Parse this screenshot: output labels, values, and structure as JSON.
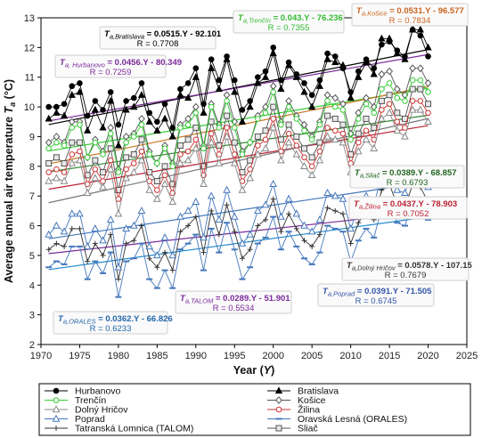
{
  "chart_data": {
    "type": "line",
    "xlabel": "Year (Y)",
    "ylabel": "Average annual air temperature Ta (°C)",
    "xlim": [
      1970,
      2025
    ],
    "ylim": [
      2,
      13
    ],
    "xticks": [
      1970,
      1975,
      1980,
      1985,
      1990,
      1995,
      2000,
      2005,
      2010,
      2015,
      2020,
      2025
    ],
    "yticks": [
      2,
      3,
      4,
      5,
      6,
      7,
      8,
      9,
      10,
      11,
      12,
      13
    ],
    "grid": false,
    "legend_position": "bottom",
    "years": [
      1971,
      1972,
      1973,
      1974,
      1975,
      1976,
      1977,
      1978,
      1979,
      1980,
      1981,
      1982,
      1983,
      1984,
      1985,
      1986,
      1987,
      1988,
      1989,
      1990,
      1991,
      1992,
      1993,
      1994,
      1995,
      1996,
      1997,
      1998,
      1999,
      2000,
      2001,
      2002,
      2003,
      2004,
      2005,
      2006,
      2007,
      2008,
      2009,
      2010,
      2011,
      2012,
      2013,
      2014,
      2015,
      2016,
      2017,
      2018,
      2019,
      2020
    ],
    "series": [
      {
        "name": "Hurbanovo",
        "color": "#000000",
        "marker": "circle-filled",
        "values": [
          10.0,
          10.0,
          10.1,
          10.7,
          10.8,
          9.7,
          10.2,
          9.9,
          10.5,
          9.4,
          10.2,
          10.3,
          10.8,
          9.8,
          9.5,
          10.1,
          9.3,
          10.6,
          10.8,
          11.3,
          10.1,
          11.6,
          10.9,
          11.7,
          10.9,
          9.9,
          10.2,
          11.0,
          11.2,
          12.0,
          10.9,
          11.5,
          11.1,
          10.8,
          10.4,
          10.9,
          11.8,
          11.7,
          11.3,
          10.5,
          11.2,
          11.6,
          11.3,
          12.1,
          12.2,
          11.9,
          11.7,
          12.6,
          12.4,
          11.7
        ]
      },
      {
        "name": "Bratislava",
        "color": "#000000",
        "marker": "triangle-filled",
        "values": [
          9.6,
          9.8,
          9.7,
          10.4,
          10.5,
          9.2,
          9.9,
          9.3,
          10.2,
          8.7,
          9.9,
          10.0,
          10.4,
          9.5,
          9.2,
          9.6,
          9.0,
          10.4,
          10.3,
          11.0,
          9.8,
          11.3,
          10.6,
          11.6,
          10.5,
          9.5,
          10.0,
          10.8,
          11.0,
          11.8,
          10.6,
          11.4,
          11.0,
          10.5,
          10.0,
          10.7,
          11.6,
          11.5,
          11.4,
          10.3,
          11.0,
          11.5,
          11.1,
          12.3,
          12.3,
          11.8,
          11.6,
          12.6,
          12.6,
          12.0
        ]
      },
      {
        "name": "Trenčín",
        "color": "#33cc33",
        "marker": "circle-open",
        "values": [
          8.6,
          8.8,
          8.7,
          9.3,
          9.4,
          8.3,
          8.8,
          8.4,
          9.1,
          7.8,
          8.8,
          9.0,
          9.4,
          8.4,
          8.1,
          8.6,
          8.0,
          9.3,
          9.4,
          9.8,
          8.6,
          10.0,
          9.3,
          10.2,
          9.3,
          8.4,
          8.8,
          9.6,
          9.8,
          10.5,
          9.4,
          10.0,
          9.6,
          9.2,
          8.9,
          9.4,
          10.2,
          10.0,
          9.9,
          8.9,
          9.6,
          10.1,
          9.8,
          10.6,
          10.8,
          10.3,
          10.2,
          10.9,
          10.9,
          10.5
        ]
      },
      {
        "name": "Košice",
        "color": "#555555",
        "marker": "diamond-open",
        "values": [
          8.8,
          9.0,
          8.8,
          9.5,
          9.5,
          8.3,
          8.9,
          8.5,
          9.3,
          7.9,
          9.0,
          9.1,
          9.6,
          8.5,
          8.1,
          8.7,
          8.1,
          9.4,
          9.6,
          10.0,
          8.7,
          10.1,
          9.4,
          10.4,
          9.5,
          8.5,
          8.8,
          9.7,
          10.0,
          10.7,
          9.5,
          10.2,
          9.7,
          9.4,
          9.0,
          9.5,
          10.4,
          10.3,
          10.1,
          9.1,
          9.8,
          10.3,
          10.0,
          11.1,
          11.2,
          10.6,
          10.4,
          11.3,
          11.3,
          10.8
        ]
      },
      {
        "name": "Dolný Hričov",
        "color": "#888888",
        "marker": "triangle-open",
        "values": [
          7.5,
          7.6,
          7.5,
          8.1,
          8.2,
          7.1,
          7.6,
          7.3,
          7.9,
          6.4,
          7.6,
          7.8,
          8.2,
          7.2,
          6.9,
          7.4,
          6.8,
          8.1,
          8.2,
          8.6,
          7.4,
          8.8,
          8.1,
          9.0,
          8.1,
          7.2,
          7.6,
          8.4,
          8.6,
          9.3,
          8.2,
          8.8,
          8.4,
          8.0,
          7.7,
          8.2,
          9.0,
          8.9,
          8.8,
          7.8,
          8.5,
          8.9,
          8.6,
          9.6,
          9.8,
          9.2,
          9.0,
          9.9,
          9.9,
          9.5
        ]
      },
      {
        "name": "Žilina",
        "color": "#cc3333",
        "marker": "circle-open",
        "values": [
          7.8,
          7.9,
          7.8,
          8.4,
          8.5,
          7.4,
          7.9,
          7.5,
          8.2,
          6.9,
          7.9,
          8.1,
          8.5,
          7.5,
          7.2,
          7.7,
          7.1,
          8.4,
          8.5,
          8.9,
          7.7,
          9.1,
          8.4,
          9.3,
          8.4,
          7.5,
          7.9,
          8.7,
          8.9,
          9.6,
          8.5,
          9.1,
          8.7,
          8.3,
          8.0,
          8.5,
          9.3,
          9.2,
          9.1,
          8.1,
          8.8,
          9.2,
          8.9,
          9.9,
          10.1,
          9.5,
          9.3,
          10.2,
          10.2,
          9.8
        ]
      },
      {
        "name": "Poprad",
        "color": "#4477bb",
        "marker": "triangle-open",
        "values": [
          5.7,
          6.0,
          5.8,
          6.4,
          6.4,
          5.3,
          5.9,
          5.5,
          6.2,
          4.6,
          5.9,
          6.0,
          6.5,
          5.3,
          5.0,
          5.6,
          5.0,
          6.3,
          6.5,
          6.8,
          5.6,
          7.0,
          6.2,
          7.2,
          6.3,
          5.4,
          5.7,
          6.5,
          6.7,
          7.4,
          6.3,
          6.9,
          6.4,
          6.0,
          5.8,
          6.2,
          7.1,
          7.0,
          6.9,
          5.9,
          6.6,
          7.0,
          6.7,
          7.7,
          7.9,
          7.2,
          7.1,
          7.9,
          7.8,
          7.3
        ]
      },
      {
        "name": "Oravská Lesná (ORALES)",
        "color": "#4477bb",
        "marker": "dash",
        "values": [
          4.6,
          4.8,
          4.7,
          5.3,
          5.3,
          4.2,
          4.8,
          4.4,
          5.1,
          3.6,
          4.8,
          4.9,
          5.4,
          4.2,
          3.9,
          4.5,
          3.9,
          5.2,
          5.4,
          5.7,
          4.5,
          5.9,
          5.1,
          6.1,
          5.2,
          4.2,
          4.6,
          5.4,
          5.6,
          6.3,
          5.2,
          5.8,
          5.3,
          4.9,
          4.7,
          5.1,
          6.0,
          5.9,
          5.8,
          4.8,
          5.5,
          5.9,
          5.6,
          6.6,
          6.8,
          6.1,
          6.0,
          6.8,
          6.7,
          6.2
        ]
      },
      {
        "name": "Tatranská Lomnica (TALOM)",
        "color": "#333333",
        "marker": "plus",
        "values": [
          5.2,
          5.4,
          5.3,
          5.9,
          5.9,
          4.8,
          5.4,
          5.0,
          5.7,
          4.2,
          5.4,
          5.5,
          6.0,
          4.9,
          4.6,
          5.1,
          4.5,
          5.8,
          6.0,
          6.3,
          5.1,
          6.5,
          5.7,
          6.7,
          5.8,
          4.9,
          5.2,
          6.0,
          6.2,
          6.9,
          5.8,
          6.4,
          5.9,
          5.5,
          5.3,
          5.7,
          6.6,
          6.5,
          6.4,
          5.4,
          6.1,
          6.5,
          6.2,
          7.2,
          7.4,
          6.7,
          6.6,
          7.4,
          7.3,
          6.8
        ]
      },
      {
        "name": "Sliač",
        "color": "#555555",
        "marker": "square-open",
        "values": [
          8.1,
          8.3,
          8.1,
          8.8,
          8.8,
          7.7,
          8.2,
          7.8,
          8.6,
          7.2,
          8.3,
          8.4,
          8.9,
          7.8,
          7.5,
          8.0,
          7.4,
          8.7,
          8.9,
          9.3,
          8.0,
          9.5,
          8.7,
          9.7,
          8.8,
          7.8,
          8.2,
          9.0,
          9.2,
          10.0,
          8.9,
          9.4,
          9.0,
          8.6,
          8.3,
          8.8,
          9.7,
          9.6,
          9.4,
          8.4,
          9.1,
          9.6,
          9.3,
          10.2,
          10.4,
          9.8,
          9.6,
          10.6,
          10.6,
          10.1
        ]
      }
    ],
    "trendlines": [
      {
        "station": "Bratislava",
        "label": "Ta,Bratislava",
        "slope": 0.0515,
        "intercept": -92.101,
        "r": 0.7708,
        "color": "#000000",
        "equation": "= 0.0515.Y - 92.101",
        "r_text": "R = 0.7708",
        "text_color": "#000000"
      },
      {
        "station": "Hurbanovo",
        "label": "Ta, Hurbanovo",
        "slope": 0.0456,
        "intercept": -80.349,
        "r": 0.7259,
        "color": "#7a2a9a",
        "equation": "= 0.0456.Y - 80.349",
        "r_text": "R = 0.7259",
        "text_color": "#7a2a9a"
      },
      {
        "station": "Trenčín",
        "label": "Ta,Trenčín",
        "slope": 0.043,
        "intercept": -76.236,
        "r": 0.7355,
        "color": "#33cc33",
        "equation": "= 0.043.Y - 76.236",
        "r_text": "R = 0.7355",
        "text_color": "#33bb33"
      },
      {
        "station": "Košice",
        "label": "Ta,Košice",
        "slope": 0.0531,
        "intercept": -96.577,
        "r": 0.7834,
        "color": "#cc7722",
        "equation": "= 0.0531.Y - 96.577",
        "r_text": "R = 0.7834",
        "text_color": "#cc6622"
      },
      {
        "station": "Sliač",
        "label": "Ta,Sliač",
        "slope": 0.0389,
        "intercept": -68.857,
        "r": 0.6793,
        "color": "#338833",
        "equation": "= 0.0389.Y - 68.857",
        "r_text": "R = 0.6793",
        "text_color": "#226622"
      },
      {
        "station": "Žilina",
        "label": "Ta,Žilina",
        "slope": 0.0437,
        "intercept": -78.903,
        "r": 0.7052,
        "color": "#bb2233",
        "equation": "= 0.0437.Y - 78.903",
        "r_text": "R = 0.7052",
        "text_color": "#bb2233"
      },
      {
        "station": "Dolný Hričov",
        "label": "Ta,Dolný Hričov",
        "slope": 0.0578,
        "intercept": -107.15,
        "r": 0.7679,
        "color": "#777777",
        "equation": "= 0.0578.Y - 107.15",
        "r_text": "R = 0.7679",
        "text_color": "#333333"
      },
      {
        "station": "Poprad",
        "label": "Ta,Poprad",
        "slope": 0.0391,
        "intercept": -71.505,
        "r": 0.6745,
        "color": "#4477bb",
        "equation": "= 0.0391.Y - 71.505",
        "r_text": "R = 0.6745",
        "text_color": "#3355aa"
      },
      {
        "station": "Tatranská Lomnica (TALOM)",
        "label": "Ta,TALOM",
        "slope": 0.0289,
        "intercept": -51.901,
        "r": 0.5534,
        "color": "#7a2a9a",
        "equation": "= 0.0289.Y - 51.901",
        "r_text": "R = 0.5534",
        "text_color": "#7a2a9a"
      },
      {
        "station": "Oravská Lesná (ORALES)",
        "label": "Ta,ORALES",
        "slope": 0.0362,
        "intercept": -66.826,
        "r": 0.6233,
        "color": "#2288cc",
        "equation": "= 0.0362.Y - 66.826",
        "r_text": "R = 0.6233",
        "text_color": "#2266aa"
      }
    ]
  }
}
